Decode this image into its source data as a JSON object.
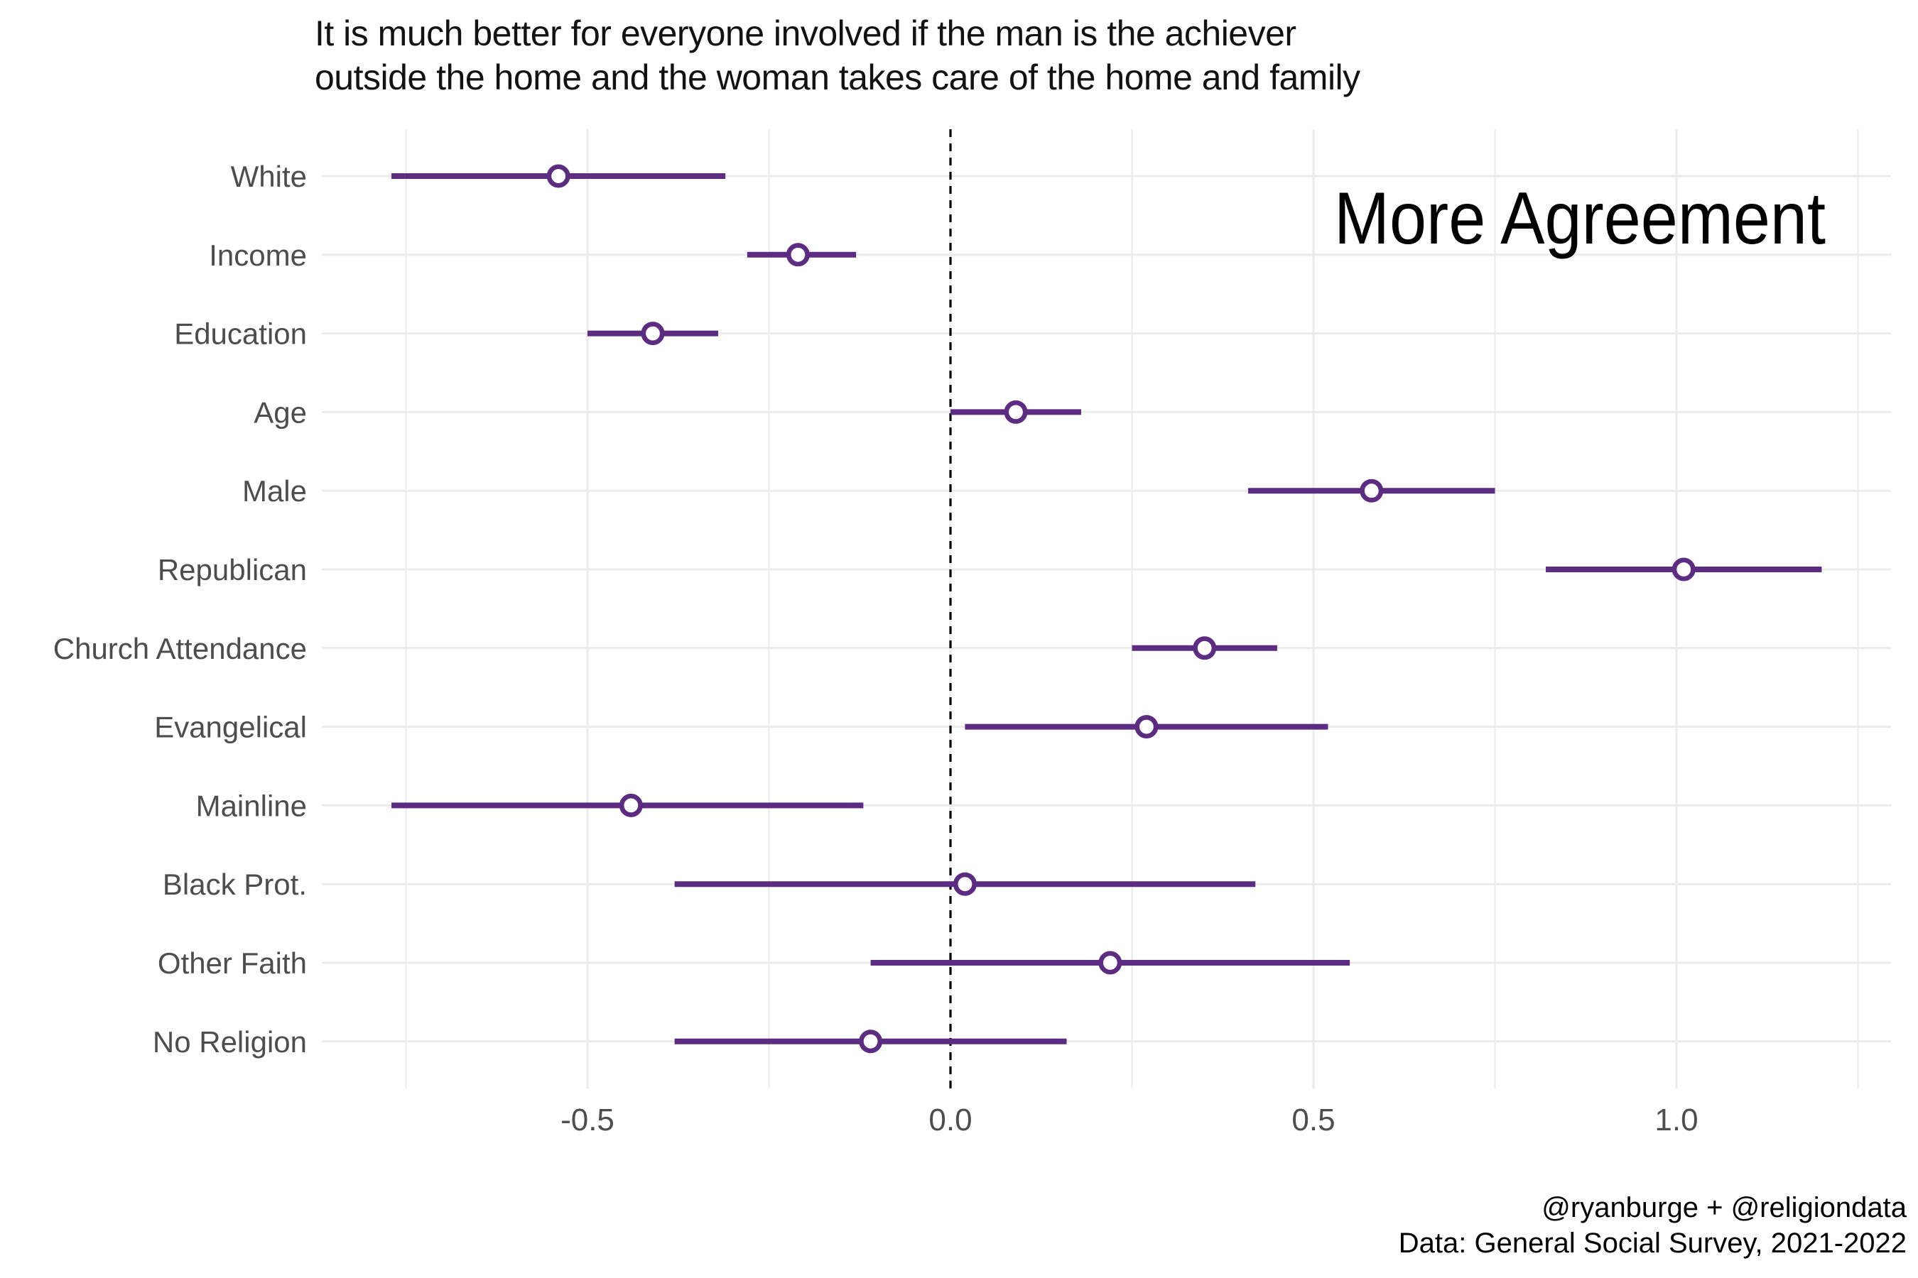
{
  "title": {
    "line1": "It is much better for everyone involved if the man is the achiever",
    "line2": "outside the home and the woman takes care of the home and family"
  },
  "annotation": "More Agreement",
  "footer": {
    "line1": "@ryanburge + @religiondata",
    "line2": "Data: General Social Survey, 2021-2022"
  },
  "colors": {
    "accent": "#5c2b82",
    "point_fill": "#ffffff",
    "grid": "#ebebeb",
    "axis_text": "#4d4d4d",
    "zero_line": "#000000",
    "background": "#ffffff",
    "title_text": "#121212"
  },
  "chart_data": {
    "type": "scatter",
    "subtype": "coefficient-dot-whisker",
    "title": "It is much better for everyone involved if the man is the achiever outside the home and the woman takes care of the home and family",
    "xlabel": "",
    "ylabel": "",
    "xlim": [
      -0.87,
      1.3
    ],
    "x_ticks": [
      -0.5,
      0.0,
      0.5,
      1.0
    ],
    "x_tick_labels": [
      "-0.5",
      "0.0",
      "0.5",
      "1.0"
    ],
    "minor_grid_values": [
      -0.75,
      -0.25,
      0.25,
      0.75,
      1.25
    ],
    "grid": "on",
    "zero_reference_line": 0.0,
    "legend_position": "none",
    "categories": [
      "White",
      "Income",
      "Education",
      "Age",
      "Male",
      "Republican",
      "Church Attendance",
      "Evangelical",
      "Mainline",
      "Black Prot.",
      "Other Faith",
      "No Religion"
    ],
    "points": [
      {
        "label": "White",
        "estimate": -0.54,
        "ci_low": -0.77,
        "ci_high": -0.31
      },
      {
        "label": "Income",
        "estimate": -0.21,
        "ci_low": -0.28,
        "ci_high": -0.13
      },
      {
        "label": "Education",
        "estimate": -0.41,
        "ci_low": -0.5,
        "ci_high": -0.32
      },
      {
        "label": "Age",
        "estimate": 0.09,
        "ci_low": 0.0,
        "ci_high": 0.18
      },
      {
        "label": "Male",
        "estimate": 0.58,
        "ci_low": 0.41,
        "ci_high": 0.75
      },
      {
        "label": "Republican",
        "estimate": 1.01,
        "ci_low": 0.82,
        "ci_high": 1.2
      },
      {
        "label": "Church Attendance",
        "estimate": 0.35,
        "ci_low": 0.25,
        "ci_high": 0.45
      },
      {
        "label": "Evangelical",
        "estimate": 0.27,
        "ci_low": 0.02,
        "ci_high": 0.52
      },
      {
        "label": "Mainline",
        "estimate": -0.44,
        "ci_low": -0.77,
        "ci_high": -0.12
      },
      {
        "label": "Black Prot.",
        "estimate": 0.02,
        "ci_low": -0.38,
        "ci_high": 0.42
      },
      {
        "label": "Other Faith",
        "estimate": 0.22,
        "ci_low": -0.11,
        "ci_high": 0.55
      },
      {
        "label": "No Religion",
        "estimate": -0.11,
        "ci_low": -0.38,
        "ci_high": 0.16
      }
    ]
  }
}
